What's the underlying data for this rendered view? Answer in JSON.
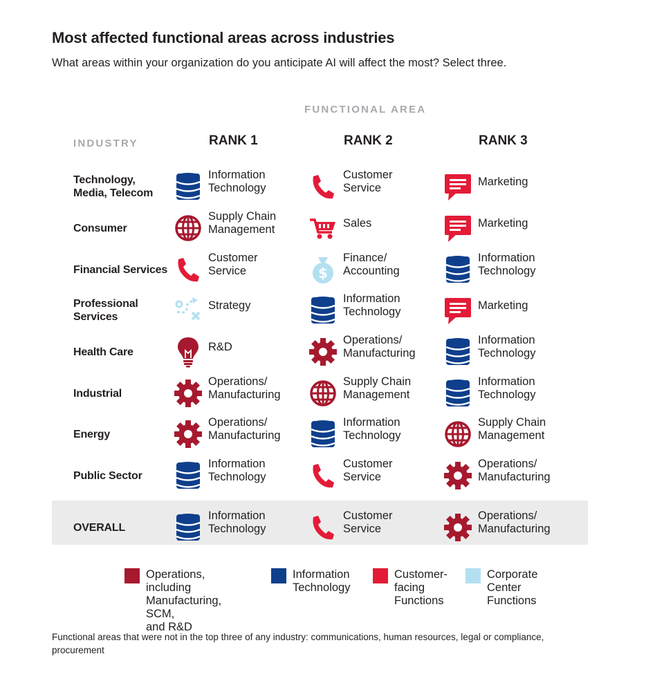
{
  "title": "Most affected functional areas across industries",
  "subtitle": "What areas within your organization do you anticipate AI will affect the most? Select three.",
  "functional_area_label": "FUNCTIONAL AREA",
  "industry_label": "INDUSTRY",
  "rank_labels": [
    "RANK 1",
    "RANK 2",
    "RANK 3"
  ],
  "colors": {
    "operations": "#a6192e",
    "information_technology": "#0f3f8c",
    "customer_facing": "#e31b37",
    "corporate_center": "#b3e0f0"
  },
  "chart_data": {
    "type": "table",
    "columns": [
      "INDUSTRY",
      "RANK 1",
      "RANK 2",
      "RANK 3"
    ],
    "rows": [
      {
        "industry": [
          "Technology,",
          "Media, Telecom"
        ],
        "ranks": [
          {
            "area": [
              "Information",
              "Technology"
            ],
            "icon": "database-icon",
            "category": "information_technology"
          },
          {
            "area": [
              "Customer",
              "Service"
            ],
            "icon": "phone-icon",
            "category": "customer_facing"
          },
          {
            "area": [
              "Marketing"
            ],
            "icon": "speech-bubble-icon",
            "category": "customer_facing"
          }
        ]
      },
      {
        "industry": [
          "Consumer"
        ],
        "ranks": [
          {
            "area": [
              "Supply Chain",
              "Management"
            ],
            "icon": "globe-icon",
            "category": "operations"
          },
          {
            "area": [
              "Sales"
            ],
            "icon": "shopping-cart-icon",
            "category": "customer_facing"
          },
          {
            "area": [
              "Marketing"
            ],
            "icon": "speech-bubble-icon",
            "category": "customer_facing"
          }
        ]
      },
      {
        "industry": [
          "Financial Services"
        ],
        "ranks": [
          {
            "area": [
              "Customer",
              "Service"
            ],
            "icon": "phone-icon",
            "category": "customer_facing"
          },
          {
            "area": [
              "Finance/",
              "Accounting"
            ],
            "icon": "money-bag-icon",
            "category": "corporate_center"
          },
          {
            "area": [
              "Information",
              "Technology"
            ],
            "icon": "database-icon",
            "category": "information_technology"
          }
        ]
      },
      {
        "industry": [
          "Professional",
          "Services"
        ],
        "ranks": [
          {
            "area": [
              "Strategy"
            ],
            "icon": "strategy-icon",
            "category": "corporate_center"
          },
          {
            "area": [
              "Information",
              "Technology"
            ],
            "icon": "database-icon",
            "category": "information_technology"
          },
          {
            "area": [
              "Marketing"
            ],
            "icon": "speech-bubble-icon",
            "category": "customer_facing"
          }
        ]
      },
      {
        "industry": [
          "Health Care"
        ],
        "ranks": [
          {
            "area": [
              "R&D"
            ],
            "icon": "lightbulb-icon",
            "category": "operations"
          },
          {
            "area": [
              "Operations/",
              "Manufacturing"
            ],
            "icon": "gear-icon",
            "category": "operations"
          },
          {
            "area": [
              "Information",
              "Technology"
            ],
            "icon": "database-icon",
            "category": "information_technology"
          }
        ]
      },
      {
        "industry": [
          "Industrial"
        ],
        "ranks": [
          {
            "area": [
              "Operations/",
              "Manufacturing"
            ],
            "icon": "gear-icon",
            "category": "operations"
          },
          {
            "area": [
              "Supply Chain",
              "Management"
            ],
            "icon": "globe-icon",
            "category": "operations"
          },
          {
            "area": [
              "Information",
              "Technology"
            ],
            "icon": "database-icon",
            "category": "information_technology"
          }
        ]
      },
      {
        "industry": [
          "Energy"
        ],
        "ranks": [
          {
            "area": [
              "Operations/",
              "Manufacturing"
            ],
            "icon": "gear-icon",
            "category": "operations"
          },
          {
            "area": [
              "Information",
              "Technology"
            ],
            "icon": "database-icon",
            "category": "information_technology"
          },
          {
            "area": [
              "Supply Chain",
              "Management"
            ],
            "icon": "globe-icon",
            "category": "operations"
          }
        ]
      },
      {
        "industry": [
          "Public Sector"
        ],
        "ranks": [
          {
            "area": [
              "Information",
              "Technology"
            ],
            "icon": "database-icon",
            "category": "information_technology"
          },
          {
            "area": [
              "Customer",
              "Service"
            ],
            "icon": "phone-icon",
            "category": "customer_facing"
          },
          {
            "area": [
              "Operations/",
              "Manufacturing"
            ],
            "icon": "gear-icon",
            "category": "operations"
          }
        ]
      },
      {
        "industry": [
          "OVERALL"
        ],
        "ranks": [
          {
            "area": [
              "Information",
              "Technology"
            ],
            "icon": "database-icon",
            "category": "information_technology"
          },
          {
            "area": [
              "Customer",
              "Service"
            ],
            "icon": "phone-icon",
            "category": "customer_facing"
          },
          {
            "area": [
              "Operations/",
              "Manufacturing"
            ],
            "icon": "gear-icon",
            "category": "operations"
          }
        ]
      }
    ]
  },
  "legend": [
    {
      "lines": [
        "Operations, including",
        "Manufacturing, SCM,",
        "and R&D"
      ],
      "category": "operations"
    },
    {
      "lines": [
        "Information",
        "Technology"
      ],
      "category": "information_technology"
    },
    {
      "lines": [
        "Customer-",
        "facing",
        "Functions"
      ],
      "category": "customer_facing"
    },
    {
      "lines": [
        "Corporate",
        "Center",
        "Functions"
      ],
      "category": "corporate_center"
    }
  ],
  "footnote": "Functional areas that were not in the top three of any industry: communications, human resources, legal or compliance, procurement"
}
